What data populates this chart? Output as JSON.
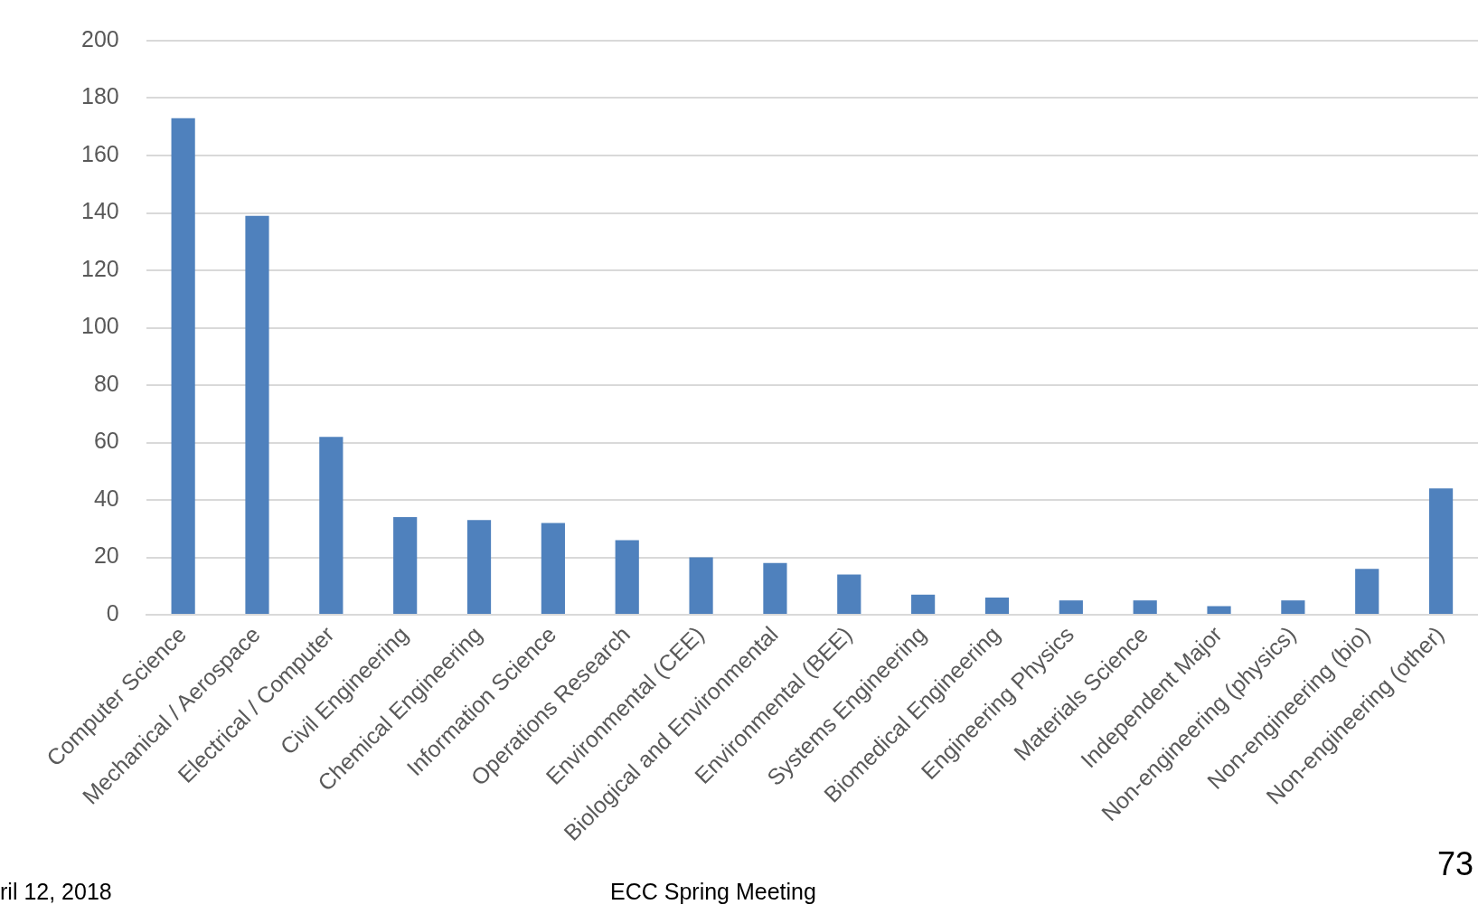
{
  "chart_data": {
    "type": "bar",
    "categories": [
      "Computer Science",
      "Mechanical / Aerospace",
      "Electrical / Computer",
      "Civil Engineering",
      "Chemical Engineering",
      "Information Science",
      "Operations Research",
      "Environmental (CEE)",
      "Biological and Environmental",
      "Environmental (BEE)",
      "Systems Engineering",
      "Biomedical Engineering",
      "Engineering Physics",
      "Materials Science",
      "Independent Major",
      "Non-engineering (physics)",
      "Non-engineering (bio)",
      "Non-engineering (other)"
    ],
    "values": [
      173,
      139,
      62,
      34,
      33,
      32,
      26,
      20,
      18,
      14,
      7,
      6,
      5,
      5,
      3,
      5,
      16,
      44
    ],
    "color": "#4f81bd",
    "ylim": [
      0,
      200
    ],
    "yticks": [
      0,
      20,
      40,
      60,
      80,
      100,
      120,
      140,
      160,
      180,
      200
    ],
    "grid": "y",
    "legend": false,
    "annotations": [
      "ril 12, 2018",
      "ECC Spring Meeting",
      "73"
    ]
  }
}
